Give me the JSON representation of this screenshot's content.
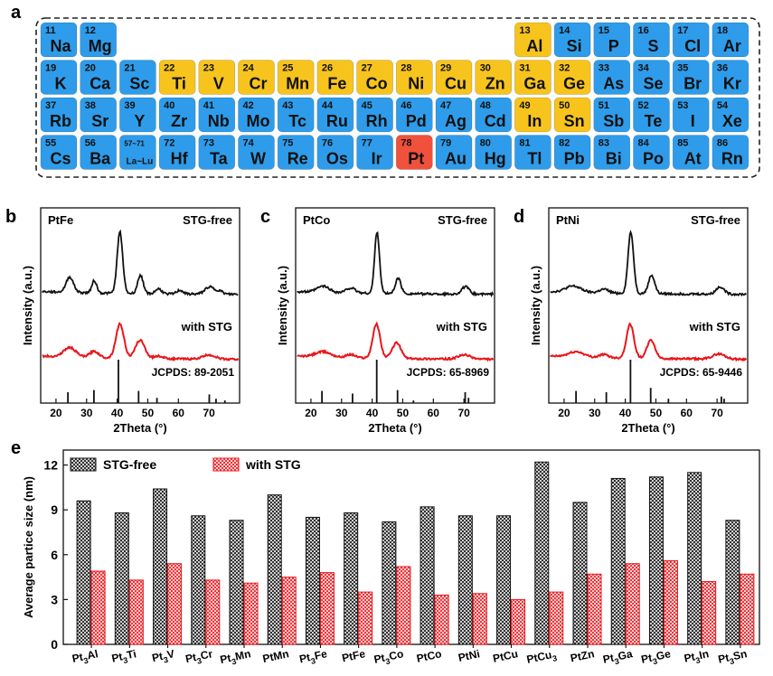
{
  "panel_letters": {
    "a": "a",
    "b": "b",
    "c": "c",
    "d": "d",
    "e": "e"
  },
  "colors": {
    "element_blue": "#2e9cea",
    "element_yellow": "#f7c41e",
    "element_red": "#f0513c",
    "series_free": "#111111",
    "series_stg": "#e8161b"
  },
  "periodic_table": {
    "rows": [
      [
        {
          "num": "11",
          "sym": "Na",
          "col": 0,
          "kind": "blue"
        },
        {
          "num": "12",
          "sym": "Mg",
          "col": 1,
          "kind": "blue"
        },
        {
          "num": "13",
          "sym": "Al",
          "col": 12,
          "kind": "yellow"
        },
        {
          "num": "14",
          "sym": "Si",
          "col": 13,
          "kind": "blue"
        },
        {
          "num": "15",
          "sym": "P",
          "col": 14,
          "kind": "blue"
        },
        {
          "num": "16",
          "sym": "S",
          "col": 15,
          "kind": "blue"
        },
        {
          "num": "17",
          "sym": "Cl",
          "col": 16,
          "kind": "blue"
        },
        {
          "num": "18",
          "sym": "Ar",
          "col": 17,
          "kind": "blue"
        }
      ],
      [
        {
          "num": "19",
          "sym": "K",
          "col": 0,
          "kind": "blue"
        },
        {
          "num": "20",
          "sym": "Ca",
          "col": 1,
          "kind": "blue"
        },
        {
          "num": "21",
          "sym": "Sc",
          "col": 2,
          "kind": "blue"
        },
        {
          "num": "22",
          "sym": "Ti",
          "col": 3,
          "kind": "yellow"
        },
        {
          "num": "23",
          "sym": "V",
          "col": 4,
          "kind": "yellow"
        },
        {
          "num": "24",
          "sym": "Cr",
          "col": 5,
          "kind": "yellow"
        },
        {
          "num": "25",
          "sym": "Mn",
          "col": 6,
          "kind": "yellow"
        },
        {
          "num": "26",
          "sym": "Fe",
          "col": 7,
          "kind": "yellow"
        },
        {
          "num": "27",
          "sym": "Co",
          "col": 8,
          "kind": "yellow"
        },
        {
          "num": "28",
          "sym": "Ni",
          "col": 9,
          "kind": "yellow"
        },
        {
          "num": "29",
          "sym": "Cu",
          "col": 10,
          "kind": "yellow"
        },
        {
          "num": "30",
          "sym": "Zn",
          "col": 11,
          "kind": "yellow"
        },
        {
          "num": "31",
          "sym": "Ga",
          "col": 12,
          "kind": "yellow"
        },
        {
          "num": "32",
          "sym": "Ge",
          "col": 13,
          "kind": "yellow"
        },
        {
          "num": "33",
          "sym": "As",
          "col": 14,
          "kind": "blue"
        },
        {
          "num": "34",
          "sym": "Se",
          "col": 15,
          "kind": "blue"
        },
        {
          "num": "35",
          "sym": "Br",
          "col": 16,
          "kind": "blue"
        },
        {
          "num": "36",
          "sym": "Kr",
          "col": 17,
          "kind": "blue"
        }
      ],
      [
        {
          "num": "37",
          "sym": "Rb",
          "col": 0,
          "kind": "blue"
        },
        {
          "num": "38",
          "sym": "Sr",
          "col": 1,
          "kind": "blue"
        },
        {
          "num": "39",
          "sym": "Y",
          "col": 2,
          "kind": "blue"
        },
        {
          "num": "40",
          "sym": "Zr",
          "col": 3,
          "kind": "blue"
        },
        {
          "num": "41",
          "sym": "Nb",
          "col": 4,
          "kind": "blue"
        },
        {
          "num": "42",
          "sym": "Mo",
          "col": 5,
          "kind": "blue"
        },
        {
          "num": "43",
          "sym": "Tc",
          "col": 6,
          "kind": "blue"
        },
        {
          "num": "44",
          "sym": "Ru",
          "col": 7,
          "kind": "blue"
        },
        {
          "num": "45",
          "sym": "Rh",
          "col": 8,
          "kind": "blue"
        },
        {
          "num": "46",
          "sym": "Pd",
          "col": 9,
          "kind": "blue"
        },
        {
          "num": "47",
          "sym": "Ag",
          "col": 10,
          "kind": "blue"
        },
        {
          "num": "48",
          "sym": "Cd",
          "col": 11,
          "kind": "blue"
        },
        {
          "num": "49",
          "sym": "In",
          "col": 12,
          "kind": "yellow"
        },
        {
          "num": "50",
          "sym": "Sn",
          "col": 13,
          "kind": "yellow"
        },
        {
          "num": "51",
          "sym": "Sb",
          "col": 14,
          "kind": "blue"
        },
        {
          "num": "52",
          "sym": "Te",
          "col": 15,
          "kind": "blue"
        },
        {
          "num": "53",
          "sym": "I",
          "col": 16,
          "kind": "blue"
        },
        {
          "num": "54",
          "sym": "Xe",
          "col": 17,
          "kind": "blue"
        }
      ],
      [
        {
          "num": "55",
          "sym": "Cs",
          "col": 0,
          "kind": "blue"
        },
        {
          "num": "56",
          "sym": "Ba",
          "col": 1,
          "kind": "blue"
        },
        {
          "num": "57~71",
          "sym": "La~Lu",
          "col": 2,
          "kind": "blue",
          "small": true
        },
        {
          "num": "72",
          "sym": "Hf",
          "col": 3,
          "kind": "blue"
        },
        {
          "num": "73",
          "sym": "Ta",
          "col": 4,
          "kind": "blue"
        },
        {
          "num": "74",
          "sym": "W",
          "col": 5,
          "kind": "blue"
        },
        {
          "num": "75",
          "sym": "Re",
          "col": 6,
          "kind": "blue"
        },
        {
          "num": "76",
          "sym": "Os",
          "col": 7,
          "kind": "blue"
        },
        {
          "num": "77",
          "sym": "Ir",
          "col": 8,
          "kind": "blue"
        },
        {
          "num": "78",
          "sym": "Pt",
          "col": 9,
          "kind": "red"
        },
        {
          "num": "79",
          "sym": "Au",
          "col": 10,
          "kind": "blue"
        },
        {
          "num": "80",
          "sym": "Hg",
          "col": 11,
          "kind": "blue"
        },
        {
          "num": "81",
          "sym": "Tl",
          "col": 12,
          "kind": "blue"
        },
        {
          "num": "82",
          "sym": "Pb",
          "col": 13,
          "kind": "blue"
        },
        {
          "num": "83",
          "sym": "Bi",
          "col": 14,
          "kind": "blue"
        },
        {
          "num": "84",
          "sym": "Po",
          "col": 15,
          "kind": "blue"
        },
        {
          "num": "85",
          "sym": "At",
          "col": 16,
          "kind": "blue"
        },
        {
          "num": "86",
          "sym": "Rn",
          "col": 17,
          "kind": "blue"
        }
      ]
    ]
  },
  "chart_data": [
    {
      "type": "line",
      "panel": "b",
      "sample": "PtFe",
      "xlabel": "2Theta (°)",
      "ylabel": "Intensity (a.u.)",
      "xlim": [
        15,
        80
      ],
      "xticks": [
        20,
        30,
        40,
        50,
        60,
        70
      ],
      "series": [
        {
          "name": "STG-free",
          "peaks": [
            [
              24.5,
              0.25,
              1.2
            ],
            [
              32.5,
              0.2,
              0.8
            ],
            [
              40.9,
              1.0,
              0.9
            ],
            [
              47.6,
              0.3,
              0.9
            ],
            [
              53.5,
              0.08,
              1.0
            ],
            [
              60.5,
              0.06,
              1.0
            ],
            [
              70.2,
              0.12,
              1.5
            ],
            [
              73.5,
              0.05,
              1.0
            ]
          ],
          "baseline": 0.05
        },
        {
          "name": "with STG",
          "peaks": [
            [
              24.5,
              0.18,
              2.0
            ],
            [
              32.5,
              0.12,
              1.5
            ],
            [
              40.9,
              0.65,
              1.3
            ],
            [
              47.5,
              0.35,
              1.5
            ],
            [
              53.5,
              0.05,
              1.5
            ],
            [
              70.0,
              0.08,
              2.0
            ]
          ],
          "baseline": 0.07
        }
      ],
      "reference": {
        "label": "JCPDS: 89-2051",
        "lines": [
          [
            23.9,
            0.25
          ],
          [
            32.4,
            0.3
          ],
          [
            40.4,
            1.0
          ],
          [
            47.0,
            0.28
          ],
          [
            53.0,
            0.12
          ],
          [
            70.1,
            0.2
          ],
          [
            72.3,
            0.1
          ],
          [
            75.2,
            0.06
          ]
        ]
      }
    },
    {
      "type": "line",
      "panel": "c",
      "sample": "PtCo",
      "xlabel": "2Theta (°)",
      "ylabel": "Intensity (a.u.)",
      "xlim": [
        15,
        80
      ],
      "xticks": [
        20,
        30,
        40,
        50,
        60,
        70
      ],
      "series": [
        {
          "name": "STG-free",
          "peaks": [
            [
              24.0,
              0.1,
              2.0
            ],
            [
              33.0,
              0.08,
              1.5
            ],
            [
              41.6,
              1.0,
              0.8
            ],
            [
              48.5,
              0.25,
              0.9
            ],
            [
              70.5,
              0.12,
              1.2
            ]
          ],
          "baseline": 0.05
        },
        {
          "name": "with STG",
          "peaks": [
            [
              24.0,
              0.1,
              2.5
            ],
            [
              33.0,
              0.06,
              1.5
            ],
            [
              41.4,
              0.65,
              1.2
            ],
            [
              48.0,
              0.3,
              1.4
            ],
            [
              70.2,
              0.08,
              2.0
            ]
          ],
          "baseline": 0.07
        }
      ],
      "reference": {
        "label": "JCPDS: 65-8969",
        "lines": [
          [
            23.6,
            0.28
          ],
          [
            33.6,
            0.22
          ],
          [
            41.5,
            1.0
          ],
          [
            48.3,
            0.3
          ],
          [
            53.5,
            0.06
          ],
          [
            70.4,
            0.25
          ],
          [
            71.5,
            0.12
          ]
        ]
      }
    },
    {
      "type": "line",
      "panel": "d",
      "sample": "PtNi",
      "xlabel": "2Theta (°)",
      "ylabel": "Intensity (a.u.)",
      "xlim": [
        15,
        80
      ],
      "xticks": [
        20,
        30,
        40,
        50,
        60,
        70
      ],
      "series": [
        {
          "name": "STG-free",
          "peaks": [
            [
              23.0,
              0.1,
              2.5
            ],
            [
              33.0,
              0.06,
              1.5
            ],
            [
              41.8,
              1.0,
              0.9
            ],
            [
              48.6,
              0.3,
              1.0
            ],
            [
              71.0,
              0.12,
              1.3
            ]
          ],
          "baseline": 0.05
        },
        {
          "name": "with STG",
          "peaks": [
            [
              24.0,
              0.1,
              2.5
            ],
            [
              33.0,
              0.06,
              1.5
            ],
            [
              41.6,
              0.65,
              1.2
            ],
            [
              48.4,
              0.35,
              1.3
            ],
            [
              70.6,
              0.1,
              2.0
            ]
          ],
          "baseline": 0.07
        }
      ],
      "reference": {
        "label": "JCPDS: 65-9446",
        "lines": [
          [
            23.9,
            0.28
          ],
          [
            33.8,
            0.25
          ],
          [
            41.7,
            1.0
          ],
          [
            48.3,
            0.35
          ],
          [
            54.1,
            0.1
          ],
          [
            71.4,
            0.15
          ],
          [
            72.3,
            0.1
          ]
        ]
      }
    },
    {
      "type": "bar",
      "panel": "e",
      "ylabel": "Average partice size (nm)",
      "ylim": [
        0,
        13
      ],
      "yticks": [
        0,
        3,
        6,
        9,
        12
      ],
      "categories": [
        {
          "main": "Pt",
          "sub": "3",
          "rest": "Al"
        },
        {
          "main": "Pt",
          "sub": "3",
          "rest": "Ti"
        },
        {
          "main": "Pt",
          "sub": "3",
          "rest": "V"
        },
        {
          "main": "Pt",
          "sub": "3",
          "rest": "Cr"
        },
        {
          "main": "Pt",
          "sub": "3",
          "rest": "Mn"
        },
        {
          "main": "PtMn",
          "sub": "",
          "rest": ""
        },
        {
          "main": "Pt",
          "sub": "3",
          "rest": "Fe"
        },
        {
          "main": "PtFe",
          "sub": "",
          "rest": ""
        },
        {
          "main": "Pt",
          "sub": "3",
          "rest": "Co"
        },
        {
          "main": "PtCo",
          "sub": "",
          "rest": ""
        },
        {
          "main": "PtNi",
          "sub": "",
          "rest": ""
        },
        {
          "main": "PtCu",
          "sub": "",
          "rest": ""
        },
        {
          "main": "PtCu",
          "sub": "3",
          "rest": ""
        },
        {
          "main": "PtZn",
          "sub": "",
          "rest": ""
        },
        {
          "main": "Pt",
          "sub": "3",
          "rest": "Ga"
        },
        {
          "main": "Pt",
          "sub": "3",
          "rest": "Ge"
        },
        {
          "main": "Pt",
          "sub": "3",
          "rest": "In"
        },
        {
          "main": "Pt",
          "sub": "3",
          "rest": "Sn"
        }
      ],
      "series": [
        {
          "name": "STG-free",
          "values": [
            9.6,
            8.8,
            10.4,
            8.6,
            8.3,
            10.0,
            8.5,
            8.8,
            8.2,
            9.2,
            8.6,
            8.6,
            12.2,
            9.5,
            11.1,
            11.2,
            11.5,
            8.3
          ]
        },
        {
          "name": "with STG",
          "values": [
            4.9,
            4.3,
            5.4,
            4.3,
            4.1,
            4.5,
            4.8,
            3.5,
            5.2,
            3.3,
            3.4,
            3.0,
            3.5,
            4.7,
            5.4,
            5.6,
            4.2,
            4.7
          ]
        }
      ],
      "legend": "top-left"
    }
  ]
}
